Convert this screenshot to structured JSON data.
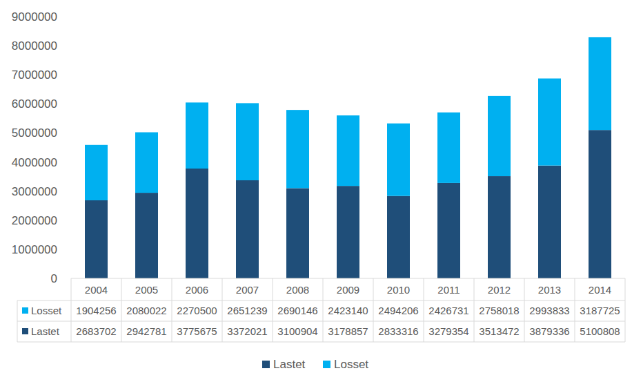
{
  "chart_data": {
    "type": "bar",
    "stacked": true,
    "grid": false,
    "legend": "bottom",
    "categories": [
      "2004",
      "2005",
      "2006",
      "2007",
      "2008",
      "2009",
      "2010",
      "2011",
      "2012",
      "2013",
      "2014"
    ],
    "series": [
      {
        "name": "Lastet",
        "color": "#1f4e79",
        "values": [
          2683702,
          2942781,
          3775675,
          3372021,
          3100904,
          3178857,
          2833316,
          3279354,
          3513472,
          3879336,
          5100808
        ]
      },
      {
        "name": "Losset",
        "color": "#00b0f0",
        "values": [
          1904256,
          2080022,
          2270500,
          2651239,
          2690146,
          2423140,
          2494206,
          2426731,
          2758018,
          2993833,
          3187725
        ]
      }
    ],
    "ylim": [
      0,
      9000000
    ],
    "yticks": [
      0,
      1000000,
      2000000,
      3000000,
      4000000,
      5000000,
      6000000,
      7000000,
      8000000,
      9000000
    ]
  }
}
